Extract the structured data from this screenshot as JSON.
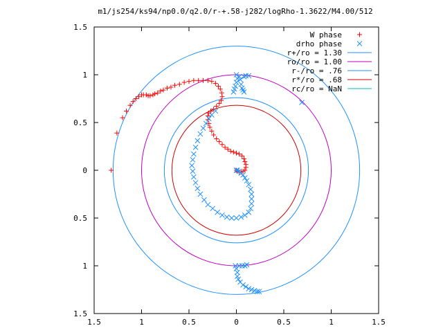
{
  "chart_data": {
    "type": "scatter",
    "title": "m1/js254/ks94/np0.0/q2.0/r-+.58-j282/logRho-1.3622/M4.00/512",
    "xlabel": "",
    "ylabel": "",
    "xlim": [
      -1.5,
      1.5
    ],
    "ylim": [
      -1.5,
      1.5
    ],
    "grid": false,
    "legend_position": "top-right",
    "xticks": [
      {
        "value": -1.5,
        "label": "1.5"
      },
      {
        "value": -1.0,
        "label": "1"
      },
      {
        "value": -0.5,
        "label": "0.5"
      },
      {
        "value": 0.0,
        "label": "0"
      },
      {
        "value": 0.5,
        "label": "0.5"
      },
      {
        "value": 1.0,
        "label": "1"
      },
      {
        "value": 1.5,
        "label": "1.5"
      }
    ],
    "yticks": [
      {
        "value": 1.5,
        "label": "1.5"
      },
      {
        "value": 1.0,
        "label": "1"
      },
      {
        "value": 0.5,
        "label": "0.5"
      },
      {
        "value": 0.0,
        "label": "0"
      },
      {
        "value": -0.5,
        "label": "0.5"
      },
      {
        "value": -1.0,
        "label": "1"
      },
      {
        "value": -1.5,
        "label": "1.5"
      }
    ],
    "series": [
      {
        "name": "W phase",
        "marker": "plus",
        "color": "#ff0000",
        "points": [
          [
            -1.32,
            0.0
          ],
          [
            -1.26,
            0.39
          ],
          [
            -1.2,
            0.55
          ],
          [
            -1.16,
            0.62
          ],
          [
            -1.12,
            0.68
          ],
          [
            -1.09,
            0.72
          ],
          [
            -1.06,
            0.75
          ],
          [
            -1.03,
            0.77
          ],
          [
            -1.0,
            0.79
          ],
          [
            -0.98,
            0.79
          ],
          [
            -0.95,
            0.79
          ],
          [
            -0.93,
            0.78
          ],
          [
            -0.91,
            0.78
          ],
          [
            -0.88,
            0.79
          ],
          [
            -0.86,
            0.8
          ],
          [
            -0.83,
            0.81
          ],
          [
            -0.8,
            0.83
          ],
          [
            -0.77,
            0.84
          ],
          [
            -0.73,
            0.86
          ],
          [
            -0.69,
            0.87
          ],
          [
            -0.65,
            0.89
          ],
          [
            -0.6,
            0.9
          ],
          [
            -0.55,
            0.92
          ],
          [
            -0.5,
            0.93
          ],
          [
            -0.45,
            0.94
          ],
          [
            -0.4,
            0.94
          ],
          [
            -0.35,
            0.94
          ],
          [
            -0.3,
            0.94
          ],
          [
            -0.26,
            0.93
          ],
          [
            -0.22,
            0.91
          ],
          [
            -0.19,
            0.88
          ],
          [
            -0.17,
            0.85
          ],
          [
            -0.155,
            0.81
          ],
          [
            -0.15,
            0.77
          ],
          [
            -0.16,
            0.73
          ],
          [
            -0.18,
            0.7
          ],
          [
            -0.21,
            0.67
          ],
          [
            -0.24,
            0.64
          ],
          [
            -0.27,
            0.62
          ],
          [
            -0.29,
            0.6
          ],
          [
            -0.3,
            0.57
          ],
          [
            -0.3,
            0.53
          ],
          [
            -0.29,
            0.49
          ],
          [
            -0.28,
            0.45
          ],
          [
            -0.26,
            0.41
          ],
          [
            -0.24,
            0.37
          ],
          [
            -0.21,
            0.33
          ],
          [
            -0.18,
            0.3
          ],
          [
            -0.15,
            0.27
          ],
          [
            -0.12,
            0.24
          ],
          [
            -0.09,
            0.22
          ],
          [
            -0.06,
            0.2
          ],
          [
            -0.03,
            0.19
          ],
          [
            0.0,
            0.18
          ],
          [
            0.03,
            0.17
          ],
          [
            0.06,
            0.15
          ],
          [
            0.08,
            0.12
          ],
          [
            0.09,
            0.09
          ],
          [
            0.1,
            0.06
          ],
          [
            0.1,
            0.03
          ],
          [
            0.09,
            0.0
          ],
          [
            0.07,
            -0.01
          ],
          [
            0.05,
            -0.02
          ],
          [
            0.03,
            -0.02
          ],
          [
            0.01,
            -0.01
          ],
          [
            0.0,
            0.0
          ]
        ]
      },
      {
        "name": "drho phase",
        "marker": "cross",
        "color": "#1e90ff",
        "points": [
          [
            0.0,
            1.0
          ],
          [
            0.01,
            0.96
          ],
          [
            0.0,
            0.92
          ],
          [
            -0.01,
            0.88
          ],
          [
            -0.02,
            0.85
          ],
          [
            -0.03,
            0.82
          ],
          [
            0.03,
            0.98
          ],
          [
            0.04,
            0.95
          ],
          [
            0.05,
            0.9
          ],
          [
            0.06,
            0.86
          ],
          [
            0.07,
            0.84
          ],
          [
            0.08,
            0.82
          ],
          [
            0.08,
            0.98
          ],
          [
            0.1,
            0.99
          ],
          [
            0.13,
            0.99
          ],
          [
            0.69,
            0.71
          ],
          [
            -0.22,
            0.62
          ],
          [
            -0.26,
            0.58
          ],
          [
            -0.29,
            0.54
          ],
          [
            -0.32,
            0.49
          ],
          [
            -0.35,
            0.44
          ],
          [
            -0.38,
            0.38
          ],
          [
            -0.41,
            0.31
          ],
          [
            -0.43,
            0.24
          ],
          [
            -0.45,
            0.17
          ],
          [
            -0.46,
            0.11
          ],
          [
            -0.47,
            0.05
          ],
          [
            -0.46,
            -0.01
          ],
          [
            -0.45,
            -0.07
          ],
          [
            -0.43,
            -0.13
          ],
          [
            -0.41,
            -0.19
          ],
          [
            -0.38,
            -0.25
          ],
          [
            -0.34,
            -0.31
          ],
          [
            -0.3,
            -0.36
          ],
          [
            -0.25,
            -0.4
          ],
          [
            -0.2,
            -0.44
          ],
          [
            -0.15,
            -0.47
          ],
          [
            -0.1,
            -0.49
          ],
          [
            -0.05,
            -0.5
          ],
          [
            0.0,
            -0.5
          ],
          [
            0.05,
            -0.49
          ],
          [
            0.09,
            -0.47
          ],
          [
            0.13,
            -0.44
          ],
          [
            0.15,
            -0.4
          ],
          [
            0.16,
            -0.35
          ],
          [
            0.16,
            -0.3
          ],
          [
            0.16,
            -0.25
          ],
          [
            0.15,
            -0.2
          ],
          [
            0.13,
            -0.15
          ],
          [
            0.11,
            -0.11
          ],
          [
            0.09,
            -0.08
          ],
          [
            0.07,
            -0.05
          ],
          [
            0.05,
            -0.03
          ],
          [
            0.03,
            -0.01
          ],
          [
            0.01,
            0.0
          ],
          [
            0.0,
            0.0
          ],
          [
            -0.01,
            -1.0
          ],
          [
            0.0,
            -1.03
          ],
          [
            0.01,
            -1.07
          ],
          [
            0.01,
            -1.11
          ],
          [
            0.02,
            -1.14
          ],
          [
            0.04,
            -1.17
          ],
          [
            0.07,
            -1.2
          ],
          [
            0.1,
            -1.22
          ],
          [
            0.13,
            -1.24
          ],
          [
            0.16,
            -1.25
          ],
          [
            0.19,
            -1.26
          ],
          [
            0.22,
            -1.27
          ],
          [
            0.24,
            -1.27
          ],
          [
            0.03,
            -1.0
          ],
          [
            0.06,
            -1.0
          ],
          [
            0.09,
            -1.0
          ],
          [
            0.11,
            -0.99
          ]
        ]
      },
      {
        "name": "r+/ro = 1.30",
        "type": "circle",
        "radius": 1.3,
        "color": "#1e90ff"
      },
      {
        "name": "ro/ro = 1.00",
        "type": "circle",
        "radius": 1.0,
        "color": "#c000c0"
      },
      {
        "name": "r-/ro = .76",
        "type": "circle",
        "radius": 0.76,
        "color": "#1e90ff"
      },
      {
        "name": "r*/ro = .68",
        "type": "circle",
        "radius": 0.68,
        "color": "#d00000"
      },
      {
        "name": "rc/ro = NaN",
        "type": "circle",
        "radius": null,
        "color": "#00c0c0"
      }
    ]
  }
}
